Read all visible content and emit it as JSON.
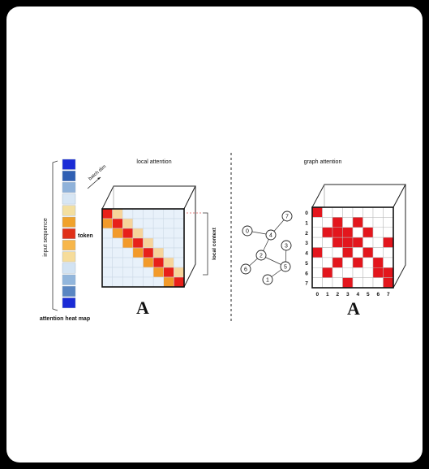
{
  "colors": {
    "strip": [
      "#1a2bd6",
      "#2f5fb3",
      "#8fb2da",
      "#d7e6f4",
      "#f3dfa0",
      "#f0a22c",
      "#e03018",
      "#f7b64a",
      "#f6dc9a",
      "#d2e3f3",
      "#92b6dc",
      "#5a86c2",
      "#1a2bd6"
    ],
    "diag_main": "#e8201a",
    "diag_near": "#f29a2a",
    "diag_far": "#f7d49a",
    "grid_cell": "#e8f1fa",
    "graph_cell": "#e3161d"
  },
  "left": {
    "title": "local attention",
    "batch_dim": "batch dim",
    "input_sequence": "input sequence",
    "token": "token",
    "local_context": "local context",
    "heatmap_label": "attention heat map",
    "matrix_letter": "A"
  },
  "right": {
    "title": "graph attention",
    "matrix_letter": "A",
    "row_labels": [
      "0",
      "1",
      "2",
      "3",
      "4",
      "5",
      "6",
      "7"
    ],
    "col_labels": [
      "0",
      "1",
      "2",
      "3",
      "4",
      "5",
      "6",
      "7"
    ],
    "nodes": [
      "0",
      "1",
      "2",
      "3",
      "4",
      "5",
      "6",
      "7"
    ],
    "edges": [
      [
        "0",
        "4"
      ],
      [
        "4",
        "7"
      ],
      [
        "4",
        "2"
      ],
      [
        "2",
        "6"
      ],
      [
        "2",
        "5"
      ],
      [
        "5",
        "3"
      ],
      [
        "5",
        "1"
      ]
    ],
    "adjacency": [
      [
        1,
        0,
        0,
        0,
        0,
        0,
        0,
        0
      ],
      [
        0,
        0,
        1,
        0,
        1,
        0,
        0,
        0
      ],
      [
        0,
        1,
        1,
        1,
        0,
        1,
        0,
        0
      ],
      [
        0,
        0,
        1,
        1,
        1,
        0,
        0,
        1
      ],
      [
        1,
        0,
        0,
        1,
        0,
        1,
        0,
        0
      ],
      [
        0,
        0,
        1,
        0,
        1,
        0,
        1,
        0
      ],
      [
        0,
        1,
        0,
        0,
        0,
        0,
        1,
        1
      ],
      [
        0,
        0,
        0,
        1,
        0,
        0,
        0,
        1
      ]
    ]
  }
}
